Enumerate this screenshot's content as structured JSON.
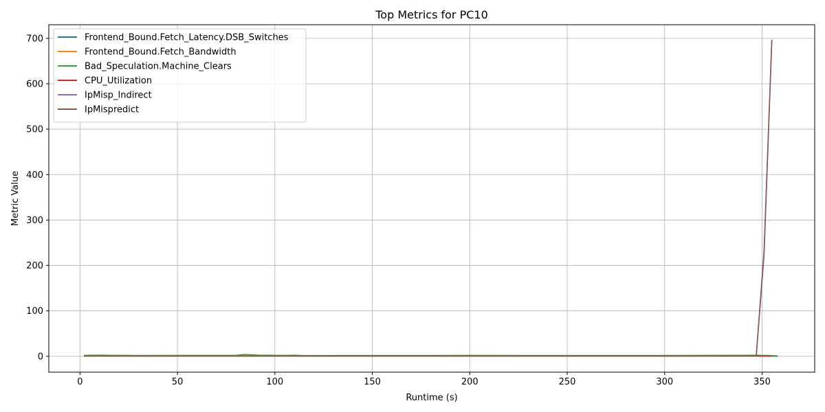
{
  "chart_data": {
    "type": "line",
    "title": "Top Metrics for PC10",
    "xlabel": "Runtime (s)",
    "ylabel": "Metric Value",
    "xlim": [
      -16,
      377
    ],
    "ylim": [
      -35,
      730
    ],
    "xticks": [
      0,
      50,
      100,
      150,
      200,
      250,
      300,
      350
    ],
    "yticks": [
      0,
      100,
      200,
      300,
      400,
      500,
      600,
      700
    ],
    "grid": true,
    "legend_position": "top-left",
    "series": [
      {
        "name": "Frontend_Bound.Fetch_Latency.DSB_Switches",
        "color": "#1f77b4",
        "points": [
          [
            2,
            0.4
          ],
          [
            50,
            0.3
          ],
          [
            100,
            0.4
          ],
          [
            150,
            0.3
          ],
          [
            200,
            0.3
          ],
          [
            250,
            0.3
          ],
          [
            300,
            0.3
          ],
          [
            347,
            0.3
          ],
          [
            358,
            0.3
          ]
        ]
      },
      {
        "name": "Frontend_Bound.Fetch_Bandwidth",
        "color": "#ff7f0e",
        "points": [
          [
            2,
            1.5
          ],
          [
            20,
            1.4
          ],
          [
            50,
            1.3
          ],
          [
            100,
            1.4
          ],
          [
            150,
            1.2
          ],
          [
            200,
            1.3
          ],
          [
            250,
            1.2
          ],
          [
            300,
            1.3
          ],
          [
            347,
            1.2
          ],
          [
            358,
            1.0
          ]
        ]
      },
      {
        "name": "Bad_Speculation.Machine_Clears",
        "color": "#2ca02c",
        "points": [
          [
            2,
            2
          ],
          [
            10,
            2.5
          ],
          [
            15,
            2.2
          ],
          [
            30,
            1.8
          ],
          [
            50,
            1.9
          ],
          [
            80,
            2
          ],
          [
            84,
            3.8
          ],
          [
            88,
            3.2
          ],
          [
            92,
            2.3
          ],
          [
            100,
            2.2
          ],
          [
            105,
            2
          ],
          [
            110,
            2.3
          ],
          [
            115,
            1.5
          ],
          [
            120,
            1.6
          ],
          [
            150,
            1.8
          ],
          [
            200,
            1.9
          ],
          [
            250,
            1.8
          ],
          [
            300,
            1.8
          ],
          [
            340,
            2.2
          ],
          [
            347,
            2.3
          ],
          [
            352,
            1.8
          ],
          [
            358,
            0.8
          ]
        ]
      },
      {
        "name": "CPU_Utilization",
        "color": "#d62728",
        "points": [
          [
            2,
            0.3
          ],
          [
            50,
            0.3
          ],
          [
            100,
            0.3
          ],
          [
            150,
            0.3
          ],
          [
            200,
            0.3
          ],
          [
            250,
            0.3
          ],
          [
            300,
            0.3
          ],
          [
            347,
            0.3
          ],
          [
            355,
            0.3
          ]
        ]
      },
      {
        "name": "IpMisp_Indirect",
        "color": "#9467bd",
        "points": [
          [
            2,
            0.5
          ],
          [
            50,
            0.5
          ],
          [
            100,
            0.5
          ],
          [
            150,
            0.5
          ],
          [
            200,
            0.5
          ],
          [
            250,
            0.5
          ],
          [
            300,
            0.5
          ],
          [
            347,
            0.5
          ],
          [
            351,
            220
          ],
          [
            355,
            695
          ]
        ]
      },
      {
        "name": "IpMispredict",
        "color": "#8c564b",
        "points": [
          [
            2,
            0.2
          ],
          [
            50,
            0.2
          ],
          [
            100,
            0.2
          ],
          [
            150,
            0.2
          ],
          [
            200,
            0.2
          ],
          [
            250,
            0.2
          ],
          [
            300,
            0.2
          ],
          [
            347,
            0.2
          ],
          [
            351,
            230
          ],
          [
            355,
            697
          ]
        ]
      }
    ]
  }
}
